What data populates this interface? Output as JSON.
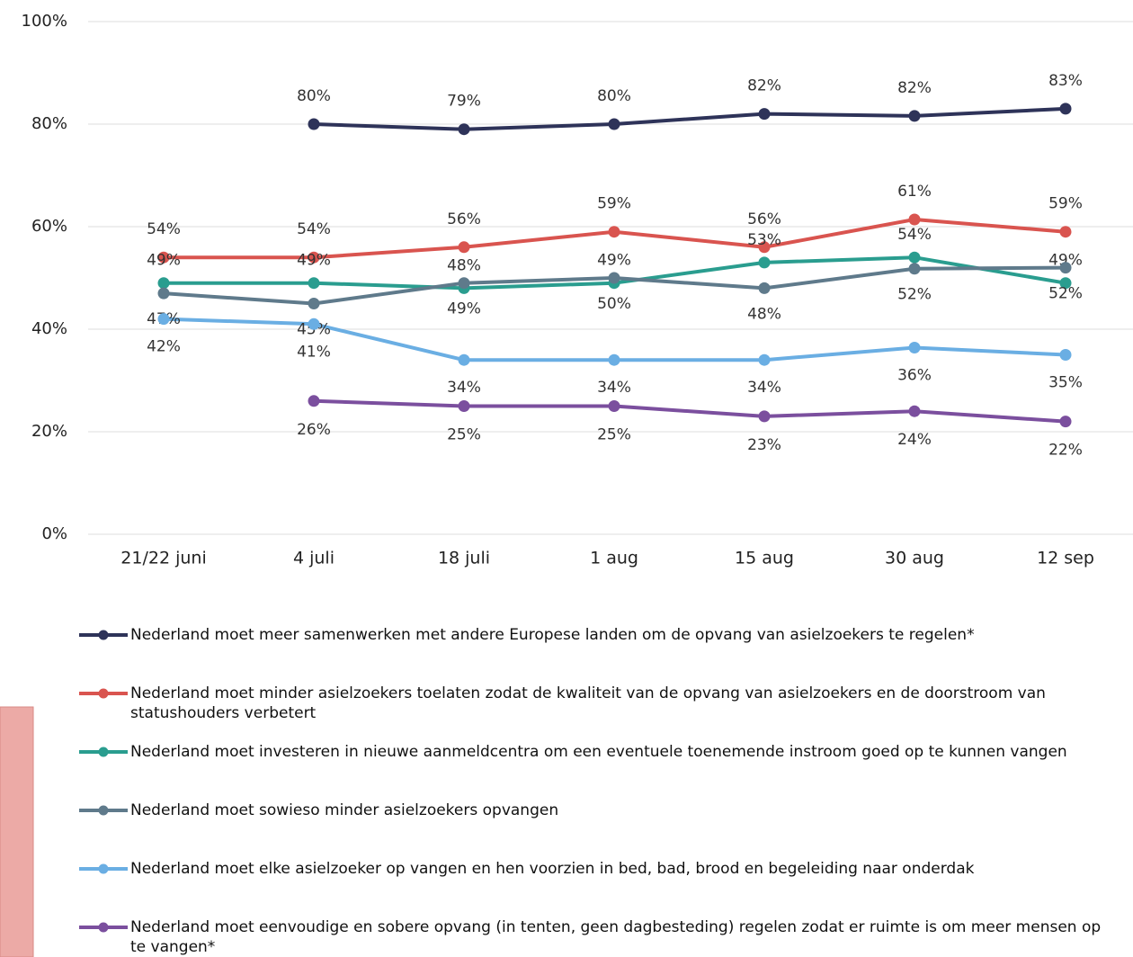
{
  "chart_data": {
    "type": "line",
    "categories": [
      "21/22 juni",
      "4 juli",
      "18 juli",
      "1 aug",
      "15 aug",
      "30 aug",
      "12 sep"
    ],
    "ylim": [
      0,
      100
    ],
    "yticks": [
      {
        "value": 0,
        "label": "0%"
      },
      {
        "value": 20,
        "label": "20%"
      },
      {
        "value": 40,
        "label": "40%"
      },
      {
        "value": 60,
        "label": "60%"
      },
      {
        "value": 80,
        "label": "80%"
      },
      {
        "value": 100,
        "label": "100%"
      }
    ],
    "grid": true,
    "series": [
      {
        "name": "Nederland moet meer samenwerken met andere Europese landen om de opvang van asielzoekers te regelen*",
        "color": "#2e3359",
        "values": [
          null,
          80,
          79,
          80,
          82,
          81.6,
          83
        ],
        "value_labels": [
          null,
          "80%",
          "79%",
          "80%",
          "82%",
          "82%",
          "83%"
        ]
      },
      {
        "name": "Nederland moet minder asielzoekers toelaten zodat de kwaliteit van de opvang van asielzoekers en de doorstroom van statushouders verbetert",
        "color": "#d9544f",
        "values": [
          54,
          54,
          56,
          59,
          56,
          61.4,
          59
        ],
        "value_labels": [
          "54%",
          "54%",
          "56%",
          "59%",
          "56%",
          "61%",
          "59%"
        ]
      },
      {
        "name": "Nederland moet investeren in nieuwe aanmeldcentra om een eventuele toenemende instroom goed op te kunnen vangen",
        "color": "#2a9d8f",
        "values": [
          49,
          49,
          48,
          49,
          53,
          54,
          49
        ],
        "value_labels": [
          "49%",
          "49%",
          "48%",
          "49%",
          "53%",
          "54%",
          "49%"
        ]
      },
      {
        "name": "Nederland moet sowieso minder asielzoekers opvangen",
        "color": "#5f7a8b",
        "values": [
          47,
          45,
          49,
          50,
          48,
          51.8,
          52
        ],
        "value_labels": [
          "47%",
          "45%",
          "49%",
          "50%",
          "48%",
          "52%",
          "52%"
        ]
      },
      {
        "name": "Nederland moet elke asielzoeker op vangen en hen voorzien in bed, bad, brood en begeleiding naar onderdak",
        "color": "#6aaee3",
        "values": [
          42,
          41,
          34,
          34,
          34,
          36.4,
          35
        ],
        "value_labels": [
          "42%",
          "41%",
          "34%",
          "34%",
          "34%",
          "36%",
          "35%"
        ]
      },
      {
        "name": "Nederland moet eenvoudige en sobere opvang (in tenten, geen dagbesteding) regelen zodat er ruimte is om meer mensen op te vangen*",
        "color": "#7b4f9e",
        "values": [
          null,
          26,
          25,
          25,
          23,
          24,
          22
        ],
        "value_labels": [
          null,
          "26%",
          "25%",
          "25%",
          "23%",
          "24%",
          "22%"
        ]
      }
    ]
  }
}
